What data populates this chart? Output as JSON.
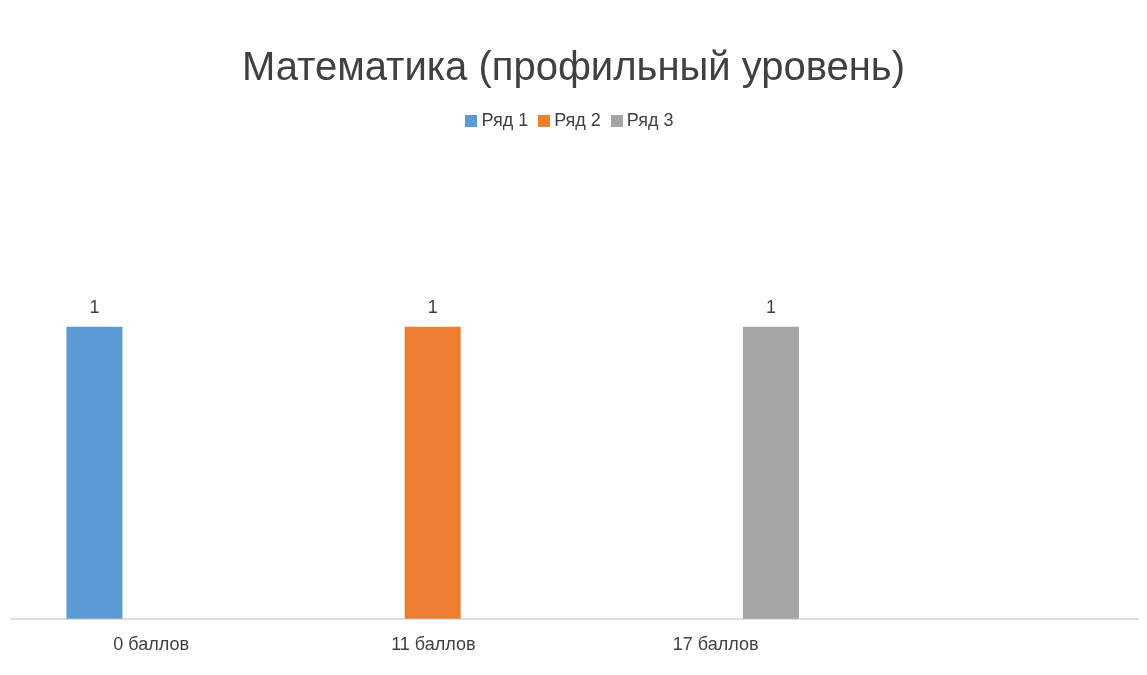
{
  "chart_data": {
    "type": "bar",
    "title": "Математика (профильный уровень)",
    "categories": [
      "0 баллов",
      "11 баллов",
      "17 баллов",
      null
    ],
    "series": [
      {
        "name": "Ряд 1",
        "color": "#5b9bd5",
        "values": [
          1,
          null,
          null,
          null
        ]
      },
      {
        "name": "Ряд 2",
        "color": "#ed7d31",
        "values": [
          null,
          1,
          null,
          null
        ]
      },
      {
        "name": "Ряд 3",
        "color": "#a5a5a5",
        "values": [
          null,
          null,
          1,
          null
        ]
      }
    ],
    "data_labels": true,
    "legend": "top",
    "grid": false
  }
}
